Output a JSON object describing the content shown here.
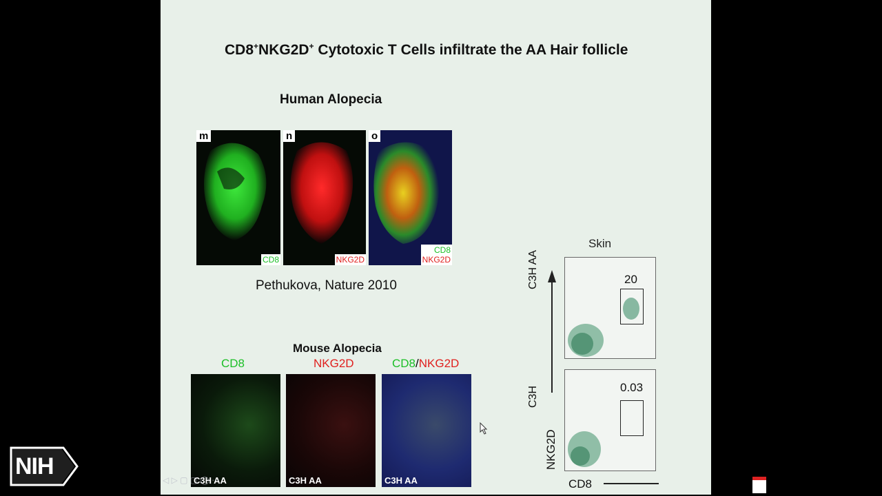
{
  "slide": {
    "title_main": "CD8",
    "title_sup1": "+",
    "title_mid": "NKG2D",
    "title_sup2": "+",
    "title_rest": " Cytotoxic T Cells infiltrate the AA Hair follicle",
    "human_heading": "Human Alopecia",
    "human_panels": [
      {
        "letter": "m",
        "channel1": "CD8",
        "channel2": ""
      },
      {
        "letter": "n",
        "channel1": "NKG2D",
        "channel2": ""
      },
      {
        "letter": "o",
        "channel1": "CD8",
        "channel2": "NKG2D"
      }
    ],
    "citation": "Pethukova, Nature 2010",
    "mouse_heading": "Mouse Alopecia",
    "mouse_headers": {
      "cd8": "CD8",
      "nkg2d": "NKG2D",
      "merge_a": "CD8",
      "slash": "/",
      "merge_b": "NKG2D"
    },
    "mouse_panel_label": "C3H AA",
    "flow": {
      "title": "Skin",
      "top_row_label": "C3H AA",
      "bottom_row_label": "C3H",
      "y_axis": "NKG2D",
      "x_axis": "CD8",
      "top_value": "20",
      "bottom_value": "0.03"
    }
  },
  "logo": {
    "text": "NIH"
  },
  "colors": {
    "slide_bg": "#e8f0e9",
    "cd8_green": "#1bbf26",
    "nkg2d_red": "#e0201e"
  }
}
